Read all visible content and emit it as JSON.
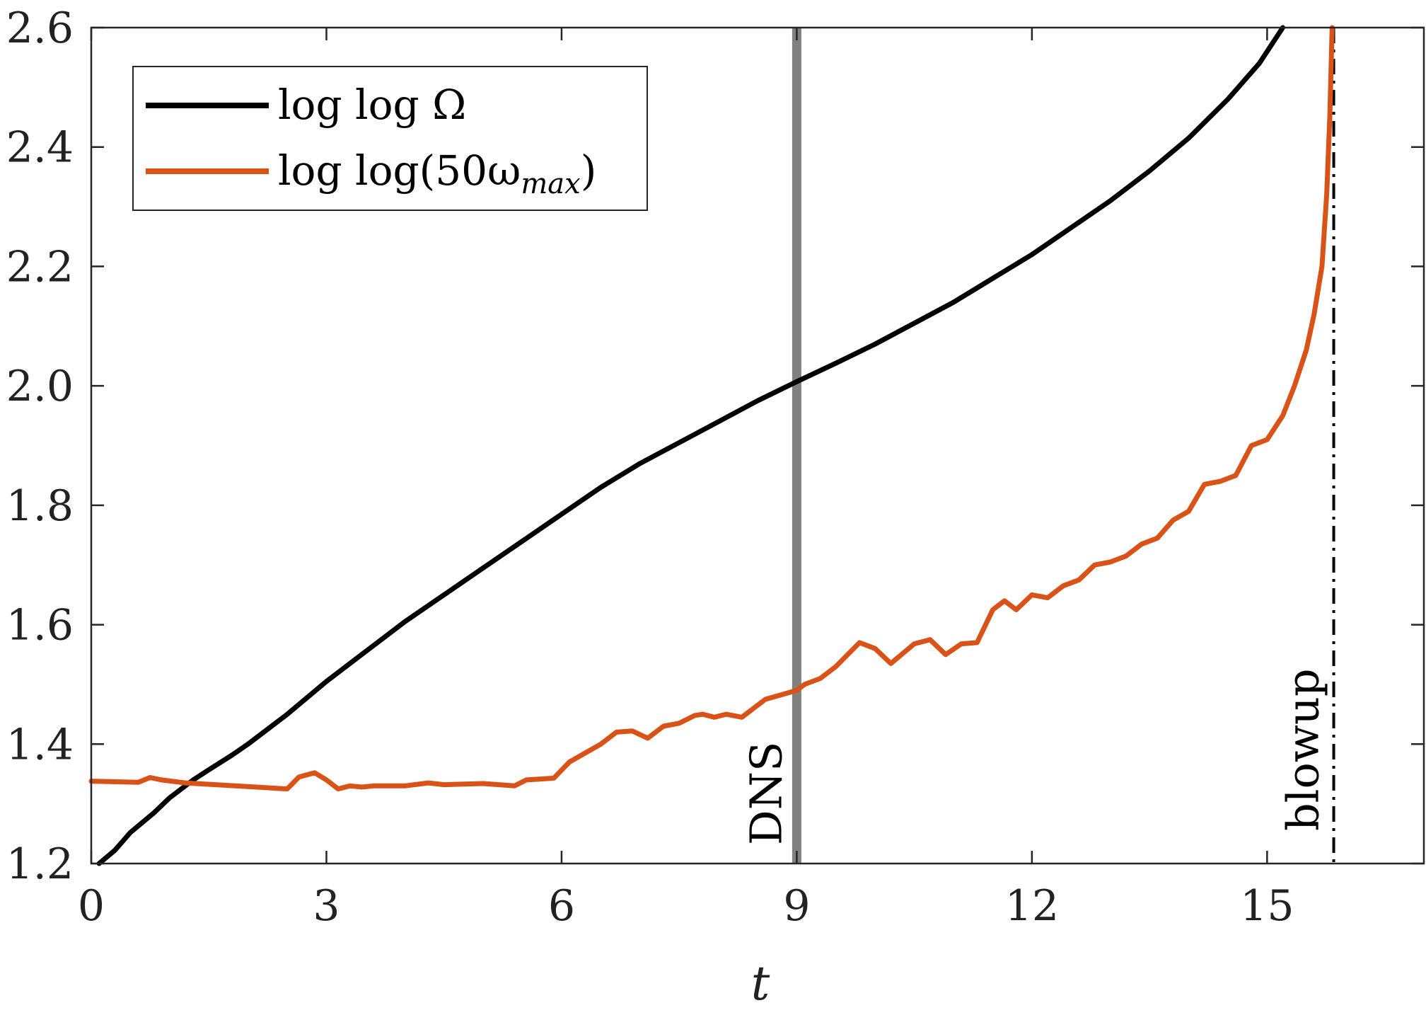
{
  "chart_data": {
    "type": "line",
    "title": "",
    "xlabel": "t",
    "ylabel": "",
    "xlim": [
      0,
      17
    ],
    "ylim": [
      1.2,
      2.6
    ],
    "xticks": [
      "0",
      "3",
      "6",
      "9",
      "12",
      "15"
    ],
    "xtick_values": [
      0,
      3,
      6,
      9,
      12,
      15
    ],
    "yticks": [
      "1.2",
      "1.4",
      "1.6",
      "1.8",
      "2.0",
      "2.2",
      "2.4",
      "2.6"
    ],
    "ytick_values": [
      1.2,
      1.4,
      1.6,
      1.8,
      2.0,
      2.2,
      2.4,
      2.6
    ],
    "grid": false,
    "legend_position": "top-left",
    "legend": [
      {
        "label_main": "log log Ω",
        "label_sub": "",
        "label_tail": "",
        "color": "#000000"
      },
      {
        "label_main": "log log(50ω",
        "label_sub": "max",
        "label_tail": ")",
        "color": "#d95319"
      }
    ],
    "series": [
      {
        "name": "log log Ω",
        "color": "#000000",
        "x": [
          0.1,
          0.3,
          0.5,
          0.8,
          1.0,
          1.3,
          1.5,
          1.8,
          2.0,
          2.5,
          3.0,
          3.5,
          4.0,
          4.5,
          5.0,
          5.5,
          6.0,
          6.5,
          7.0,
          7.5,
          8.0,
          8.5,
          9.0,
          9.5,
          10.0,
          10.5,
          11.0,
          11.5,
          12.0,
          12.5,
          13.0,
          13.5,
          14.0,
          14.5,
          14.9,
          15.2
        ],
        "y": [
          1.2,
          1.222,
          1.252,
          1.285,
          1.31,
          1.34,
          1.357,
          1.382,
          1.4,
          1.45,
          1.505,
          1.555,
          1.605,
          1.65,
          1.695,
          1.74,
          1.785,
          1.83,
          1.87,
          1.905,
          1.94,
          1.975,
          2.007,
          2.038,
          2.07,
          2.105,
          2.14,
          2.18,
          2.22,
          2.265,
          2.31,
          2.36,
          2.415,
          2.48,
          2.54,
          2.6
        ]
      },
      {
        "name": "log log(50ωmax)",
        "color": "#d95319",
        "x": [
          0.0,
          0.6,
          0.75,
          0.9,
          1.2,
          2.5,
          2.65,
          2.85,
          3.0,
          3.15,
          3.3,
          3.45,
          3.6,
          4.0,
          4.3,
          4.5,
          5.0,
          5.4,
          5.55,
          5.9,
          6.1,
          6.3,
          6.5,
          6.7,
          6.9,
          7.1,
          7.3,
          7.5,
          7.7,
          7.8,
          7.95,
          8.1,
          8.3,
          8.6,
          9.0,
          9.1,
          9.3,
          9.5,
          9.8,
          10.0,
          10.2,
          10.5,
          10.7,
          10.9,
          11.1,
          11.3,
          11.5,
          11.65,
          11.8,
          12.0,
          12.2,
          12.4,
          12.6,
          12.8,
          13.0,
          13.2,
          13.4,
          13.6,
          13.8,
          14.0,
          14.2,
          14.4,
          14.6,
          14.8,
          15.0,
          15.2,
          15.35,
          15.5,
          15.6,
          15.7,
          15.76,
          15.8,
          15.83
        ],
        "y": [
          1.338,
          1.336,
          1.344,
          1.34,
          1.335,
          1.325,
          1.345,
          1.352,
          1.34,
          1.325,
          1.33,
          1.328,
          1.33,
          1.33,
          1.335,
          1.332,
          1.334,
          1.33,
          1.34,
          1.343,
          1.37,
          1.385,
          1.4,
          1.42,
          1.422,
          1.41,
          1.43,
          1.435,
          1.448,
          1.45,
          1.445,
          1.45,
          1.445,
          1.475,
          1.49,
          1.5,
          1.51,
          1.53,
          1.57,
          1.56,
          1.535,
          1.568,
          1.575,
          1.55,
          1.568,
          1.57,
          1.625,
          1.64,
          1.625,
          1.65,
          1.645,
          1.665,
          1.675,
          1.7,
          1.705,
          1.715,
          1.735,
          1.745,
          1.775,
          1.79,
          1.835,
          1.84,
          1.85,
          1.9,
          1.91,
          1.95,
          2.0,
          2.06,
          2.12,
          2.2,
          2.32,
          2.45,
          2.6
        ]
      }
    ],
    "vlines": [
      {
        "x": 9.0,
        "label": "DNS",
        "color": "#808080",
        "style": "solid"
      },
      {
        "x": 15.85,
        "label": "blowup",
        "color": "#000000",
        "style": "dashdot"
      }
    ]
  }
}
